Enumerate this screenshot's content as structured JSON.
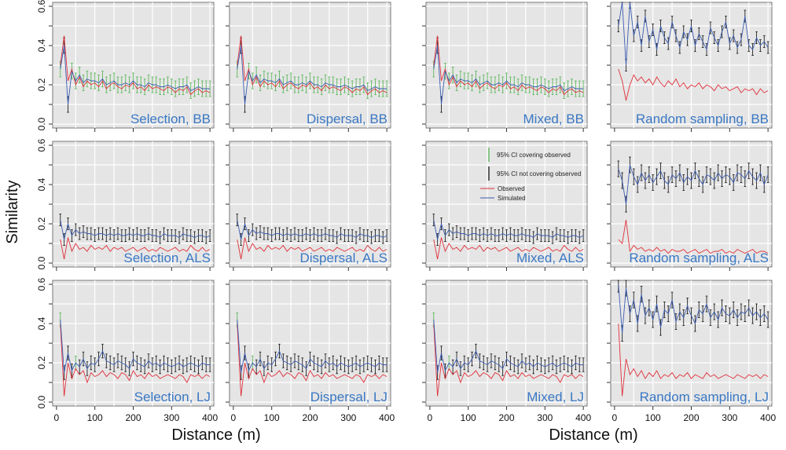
{
  "chart_data": {
    "type": "line",
    "ylabel": "Similarity",
    "xlabel": "Distance (m)",
    "xlim": [
      0,
      400
    ],
    "ylim": [
      0.0,
      0.6
    ],
    "xticks": [
      0,
      100,
      200,
      300,
      400
    ],
    "yticks": [
      "0.0",
      "0.2",
      "0.4",
      "0.6"
    ],
    "grid": true,
    "x": [
      10,
      20,
      30,
      40,
      50,
      60,
      70,
      80,
      90,
      100,
      110,
      120,
      130,
      140,
      150,
      160,
      170,
      180,
      190,
      200,
      210,
      220,
      230,
      240,
      250,
      260,
      270,
      280,
      290,
      300,
      310,
      320,
      330,
      340,
      350,
      360,
      370,
      380,
      390,
      400
    ],
    "legend": {
      "placement": "top-center of Mixed, ALS panel",
      "ci_cover": "95% CI covering observed",
      "ci_nocover": "95% CI not covering observed",
      "observed": "Observed",
      "simulated": "Simulated"
    },
    "colors": {
      "observed": "#e0303a",
      "simulated": "#3a5bb0",
      "ci_cover": "#5cb85c",
      "ci_nocover": "#222222",
      "label": "#3a78c4"
    },
    "series_sets": {
      "BB": {
        "observed": [
          0.3,
          0.45,
          0.22,
          0.28,
          0.2,
          0.24,
          0.19,
          0.22,
          0.2,
          0.21,
          0.19,
          0.22,
          0.18,
          0.2,
          0.21,
          0.19,
          0.18,
          0.2,
          0.19,
          0.21,
          0.18,
          0.19,
          0.17,
          0.2,
          0.18,
          0.19,
          0.18,
          0.17,
          0.19,
          0.18,
          0.16,
          0.18,
          0.17,
          0.19,
          0.15,
          0.17,
          0.18,
          0.16,
          0.17,
          0.16
        ],
        "simulated": [
          0.28,
          0.4,
          0.1,
          0.27,
          0.22,
          0.25,
          0.21,
          0.23,
          0.22,
          0.22,
          0.21,
          0.23,
          0.2,
          0.21,
          0.22,
          0.2,
          0.2,
          0.21,
          0.2,
          0.22,
          0.2,
          0.2,
          0.19,
          0.21,
          0.2,
          0.2,
          0.19,
          0.19,
          0.2,
          0.19,
          0.18,
          0.19,
          0.19,
          0.2,
          0.17,
          0.18,
          0.19,
          0.18,
          0.18,
          0.18
        ],
        "ci_halfwidth": 0.04
      },
      "BB_random": {
        "observed": [
          0.28,
          0.22,
          0.12,
          0.2,
          0.25,
          0.22,
          0.24,
          0.21,
          0.23,
          0.2,
          0.24,
          0.21,
          0.19,
          0.22,
          0.2,
          0.23,
          0.19,
          0.21,
          0.18,
          0.2,
          0.19,
          0.21,
          0.18,
          0.2,
          0.19,
          0.17,
          0.2,
          0.18,
          0.19,
          0.17,
          0.18,
          0.19,
          0.16,
          0.18,
          0.17,
          0.18,
          0.15,
          0.18,
          0.16,
          0.17
        ],
        "simulated": [
          0.5,
          0.65,
          0.3,
          0.62,
          0.45,
          0.52,
          0.4,
          0.55,
          0.42,
          0.48,
          0.38,
          0.5,
          0.44,
          0.41,
          0.52,
          0.45,
          0.39,
          0.47,
          0.43,
          0.5,
          0.4,
          0.46,
          0.42,
          0.38,
          0.49,
          0.44,
          0.4,
          0.47,
          0.52,
          0.41,
          0.45,
          0.39,
          0.43,
          0.55,
          0.4,
          0.38,
          0.44,
          0.4,
          0.42,
          0.39
        ],
        "ci_halfwidth": 0.03
      },
      "ALS": {
        "observed": [
          0.12,
          0.02,
          0.13,
          0.06,
          0.1,
          0.07,
          0.08,
          0.06,
          0.09,
          0.07,
          0.08,
          0.07,
          0.09,
          0.06,
          0.08,
          0.07,
          0.08,
          0.06,
          0.07,
          0.08,
          0.06,
          0.07,
          0.08,
          0.06,
          0.07,
          0.06,
          0.08,
          0.07,
          0.06,
          0.07,
          0.08,
          0.06,
          0.07,
          0.06,
          0.09,
          0.07,
          0.06,
          0.08,
          0.06,
          0.07
        ],
        "simulated": [
          0.22,
          0.12,
          0.2,
          0.14,
          0.17,
          0.15,
          0.16,
          0.15,
          0.15,
          0.14,
          0.15,
          0.15,
          0.14,
          0.15,
          0.14,
          0.15,
          0.14,
          0.14,
          0.15,
          0.14,
          0.15,
          0.14,
          0.14,
          0.15,
          0.14,
          0.14,
          0.13,
          0.15,
          0.14,
          0.14,
          0.14,
          0.13,
          0.15,
          0.14,
          0.14,
          0.13,
          0.14,
          0.14,
          0.13,
          0.14
        ],
        "ci_halfwidth": 0.03
      },
      "ALS_random": {
        "observed": [
          0.12,
          0.1,
          0.22,
          0.06,
          0.09,
          0.07,
          0.08,
          0.06,
          0.07,
          0.06,
          0.08,
          0.06,
          0.07,
          0.05,
          0.07,
          0.06,
          0.06,
          0.07,
          0.05,
          0.06,
          0.07,
          0.05,
          0.06,
          0.07,
          0.05,
          0.06,
          0.06,
          0.07,
          0.05,
          0.06,
          0.05,
          0.07,
          0.06,
          0.05,
          0.06,
          0.07,
          0.05,
          0.06,
          0.06,
          0.05
        ],
        "simulated": [
          0.48,
          0.42,
          0.3,
          0.5,
          0.44,
          0.4,
          0.46,
          0.42,
          0.45,
          0.41,
          0.44,
          0.47,
          0.42,
          0.4,
          0.45,
          0.43,
          0.46,
          0.41,
          0.44,
          0.42,
          0.47,
          0.43,
          0.4,
          0.45,
          0.44,
          0.42,
          0.46,
          0.43,
          0.45,
          0.44,
          0.41,
          0.46,
          0.45,
          0.43,
          0.47,
          0.44,
          0.42,
          0.46,
          0.4,
          0.45
        ],
        "ci_halfwidth": 0.04
      },
      "LJ": {
        "observed": [
          0.4,
          0.03,
          0.2,
          0.12,
          0.17,
          0.14,
          0.16,
          0.1,
          0.15,
          0.13,
          0.14,
          0.16,
          0.13,
          0.15,
          0.14,
          0.12,
          0.15,
          0.14,
          0.11,
          0.16,
          0.13,
          0.14,
          0.12,
          0.15,
          0.13,
          0.14,
          0.12,
          0.13,
          0.14,
          0.13,
          0.12,
          0.14,
          0.13,
          0.1,
          0.14,
          0.13,
          0.14,
          0.12,
          0.14,
          0.13
        ],
        "simulated": [
          0.42,
          0.15,
          0.25,
          0.16,
          0.2,
          0.18,
          0.22,
          0.17,
          0.2,
          0.19,
          0.22,
          0.26,
          0.21,
          0.2,
          0.19,
          0.21,
          0.2,
          0.19,
          0.17,
          0.22,
          0.2,
          0.19,
          0.18,
          0.21,
          0.19,
          0.2,
          0.18,
          0.2,
          0.19,
          0.18,
          0.19,
          0.2,
          0.18,
          0.19,
          0.2,
          0.19,
          0.18,
          0.2,
          0.19,
          0.19
        ],
        "ci_halfwidth": 0.035
      },
      "LJ_random": {
        "observed": [
          0.4,
          0.03,
          0.22,
          0.14,
          0.17,
          0.13,
          0.16,
          0.12,
          0.15,
          0.13,
          0.16,
          0.12,
          0.14,
          0.13,
          0.15,
          0.12,
          0.14,
          0.13,
          0.15,
          0.12,
          0.14,
          0.13,
          0.12,
          0.15,
          0.13,
          0.14,
          0.12,
          0.13,
          0.14,
          0.13,
          0.12,
          0.14,
          0.13,
          0.12,
          0.14,
          0.13,
          0.14,
          0.12,
          0.14,
          0.13
        ],
        "simulated": [
          0.6,
          0.35,
          0.58,
          0.45,
          0.52,
          0.4,
          0.55,
          0.44,
          0.48,
          0.42,
          0.5,
          0.38,
          0.47,
          0.45,
          0.52,
          0.41,
          0.46,
          0.43,
          0.49,
          0.44,
          0.4,
          0.47,
          0.45,
          0.5,
          0.43,
          0.46,
          0.42,
          0.48,
          0.45,
          0.44,
          0.47,
          0.43,
          0.46,
          0.45,
          0.48,
          0.44,
          0.46,
          0.43,
          0.45,
          0.42
        ],
        "ci_halfwidth": 0.04
      }
    },
    "panels": [
      {
        "title": "Selection, BB",
        "set": "BB"
      },
      {
        "title": "Dispersal, BB",
        "set": "BB"
      },
      {
        "title": "Mixed, BB",
        "set": "BB"
      },
      {
        "title": "Random sampling, BB",
        "set": "BB_random"
      },
      {
        "title": "Selection, ALS",
        "set": "ALS"
      },
      {
        "title": "Dispersal, ALS",
        "set": "ALS"
      },
      {
        "title": "Mixed, ALS",
        "set": "ALS"
      },
      {
        "title": "Random sampling, ALS",
        "set": "ALS_random"
      },
      {
        "title": "Selection, LJ",
        "set": "LJ"
      },
      {
        "title": "Dispersal, LJ",
        "set": "LJ"
      },
      {
        "title": "Mixed, LJ",
        "set": "LJ"
      },
      {
        "title": "Random sampling, LJ",
        "set": "LJ_random"
      }
    ]
  }
}
